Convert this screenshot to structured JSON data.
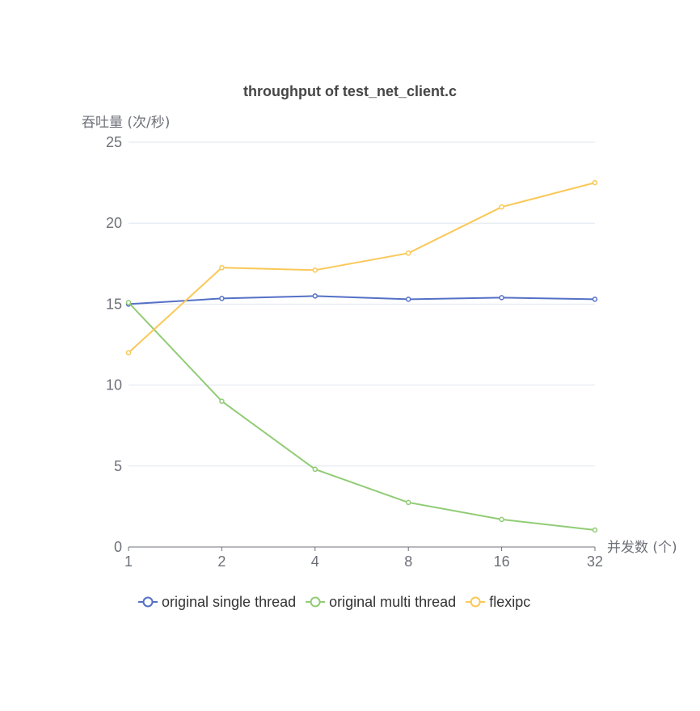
{
  "chart_data": {
    "type": "line",
    "title": "throughput of test_net_client.c",
    "xlabel": "并发数 (个)",
    "ylabel": "吞吐量 (次/秒)",
    "categories": [
      "1",
      "2",
      "4",
      "8",
      "16",
      "32"
    ],
    "ylim": [
      0,
      25
    ],
    "yticks": [
      0,
      5,
      10,
      15,
      20,
      25
    ],
    "grid": true,
    "legend_position": "bottom",
    "series": [
      {
        "name": "original single thread",
        "color": "#5470c6",
        "values": [
          15.0,
          15.35,
          15.5,
          15.3,
          15.4,
          15.3
        ]
      },
      {
        "name": "original multi thread",
        "color": "#91cc75",
        "values": [
          15.1,
          9.0,
          4.8,
          2.75,
          1.7,
          1.05
        ]
      },
      {
        "name": "flexipc",
        "color": "#fac858",
        "values": [
          12.0,
          17.25,
          17.1,
          18.15,
          21.0,
          22.5
        ]
      }
    ]
  }
}
